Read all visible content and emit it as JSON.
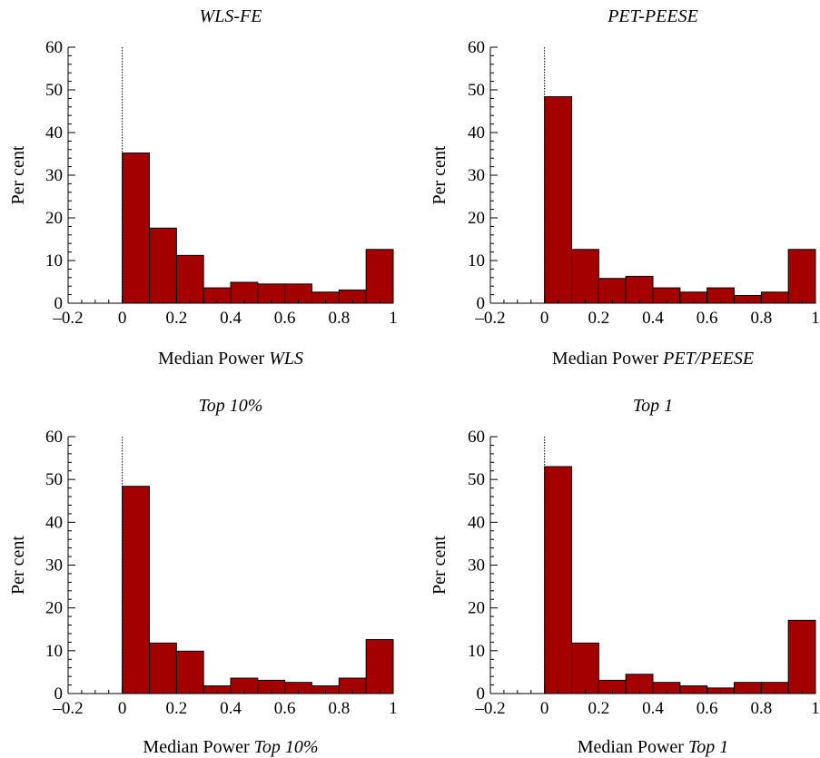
{
  "colors": {
    "bar_fill": "#a50000",
    "bar_stroke": "#000000",
    "axis": "#000000"
  },
  "chart_data": [
    {
      "type": "bar",
      "title": "WLS-FE",
      "xlabel": "Median Power",
      "xlabel_italic": "WLS",
      "ylabel": "Per cent",
      "xlim": [
        -0.2,
        1
      ],
      "ylim": [
        0,
        60
      ],
      "xticks": [
        "–0.2",
        "0",
        "0.2",
        "0.4",
        "0.6",
        "0.8",
        "1"
      ],
      "yticks": [
        "0",
        "10",
        "20",
        "30",
        "40",
        "50",
        "60"
      ],
      "bin_edges": [
        0,
        0.1,
        0.2,
        0.3,
        0.4,
        0.5,
        0.6,
        0.7,
        0.8,
        0.9,
        1.0
      ],
      "values": [
        35.2,
        17.6,
        11.2,
        3.6,
        4.9,
        4.5,
        4.5,
        2.6,
        3.1,
        12.6
      ],
      "reference_line_x": 0,
      "grid": false
    },
    {
      "type": "bar",
      "title": "PET-PEESE",
      "xlabel": "Median Power",
      "xlabel_italic": "PET/PEESE",
      "ylabel": "Per cent",
      "xlim": [
        -0.2,
        1
      ],
      "ylim": [
        0,
        60
      ],
      "xticks": [
        "–0.2",
        "0",
        "0.2",
        "0.4",
        "0.6",
        "0.8",
        "1"
      ],
      "yticks": [
        "0",
        "10",
        "20",
        "30",
        "40",
        "50",
        "60"
      ],
      "bin_edges": [
        0,
        0.1,
        0.2,
        0.3,
        0.4,
        0.5,
        0.6,
        0.7,
        0.8,
        0.9,
        1.0
      ],
      "values": [
        48.4,
        12.6,
        5.8,
        6.3,
        3.6,
        2.6,
        3.6,
        1.8,
        2.6,
        12.6
      ],
      "reference_line_x": 0,
      "grid": false
    },
    {
      "type": "bar",
      "title": "Top 10%",
      "xlabel": "Median Power",
      "xlabel_italic": "Top 10%",
      "ylabel": "Per cent",
      "xlim": [
        -0.2,
        1
      ],
      "ylim": [
        0,
        60
      ],
      "xticks": [
        "–0.2",
        "0",
        "0.2",
        "0.4",
        "0.6",
        "0.8",
        "1"
      ],
      "yticks": [
        "0",
        "10",
        "20",
        "30",
        "40",
        "50",
        "60"
      ],
      "bin_edges": [
        0,
        0.1,
        0.2,
        0.3,
        0.4,
        0.5,
        0.6,
        0.7,
        0.8,
        0.9,
        1.0
      ],
      "values": [
        48.4,
        11.8,
        9.9,
        1.8,
        3.6,
        3.1,
        2.6,
        1.8,
        3.6,
        12.6
      ],
      "reference_line_x": 0,
      "grid": false
    },
    {
      "type": "bar",
      "title": "Top 1",
      "xlabel": "Median Power",
      "xlabel_italic": "Top 1",
      "ylabel": "Per cent",
      "xlim": [
        -0.2,
        1
      ],
      "ylim": [
        0,
        60
      ],
      "xticks": [
        "–0.2",
        "0",
        "0.2",
        "0.4",
        "0.6",
        "0.8",
        "1"
      ],
      "yticks": [
        "0",
        "10",
        "20",
        "30",
        "40",
        "50",
        "60"
      ],
      "bin_edges": [
        0,
        0.1,
        0.2,
        0.3,
        0.4,
        0.5,
        0.6,
        0.7,
        0.8,
        0.9,
        1.0
      ],
      "values": [
        53.0,
        11.8,
        3.1,
        4.5,
        2.6,
        1.8,
        1.3,
        2.6,
        2.6,
        17.1
      ],
      "reference_line_x": 0,
      "grid": false
    }
  ]
}
